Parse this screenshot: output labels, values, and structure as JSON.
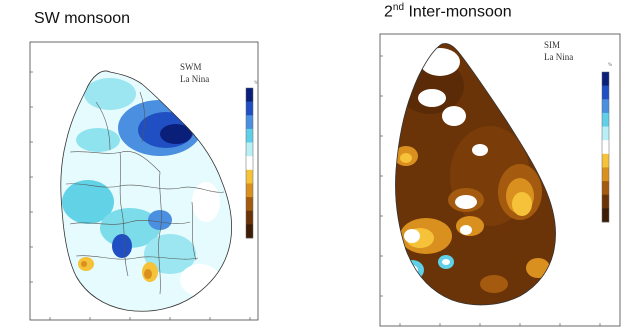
{
  "titles": {
    "left": "SW monsoon",
    "right_prefix": "2",
    "right_sup": "nd",
    "right_suffix": " Inter-monsoon"
  },
  "maps": [
    {
      "season": "SWM",
      "phase": "La Nina",
      "colorbar_unit": "%",
      "palette": [
        "#0a1f7a",
        "#1f4fc2",
        "#4a8fe0",
        "#5fd0e8",
        "#b8f0f5",
        "#ffffff",
        "#f5c23a",
        "#d9901f",
        "#a45a0f",
        "#6b3408",
        "#3d1d05"
      ]
    },
    {
      "season": "SIM",
      "phase": "La Nina",
      "colorbar_unit": "%",
      "palette": [
        "#0a1f7a",
        "#1f4fc2",
        "#4a8fe0",
        "#5fd0e8",
        "#b8f0f5",
        "#ffffff",
        "#f5c23a",
        "#d9901f",
        "#a45a0f",
        "#6b3408",
        "#3d1d05"
      ]
    }
  ]
}
